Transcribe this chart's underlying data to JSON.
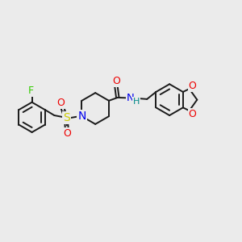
{
  "bg_color": "#ebebeb",
  "bond_color": "#1a1a1a",
  "F_color": "#33cc00",
  "N_color": "#0000ee",
  "O_color": "#ee0000",
  "S_color": "#cccc00",
  "NH_color": "#008888",
  "lw": 1.4,
  "fig_width": 3.0,
  "fig_height": 3.0,
  "dpi": 100,
  "xlim": [
    -3.8,
    3.8
  ],
  "ylim": [
    -2.2,
    2.2
  ]
}
